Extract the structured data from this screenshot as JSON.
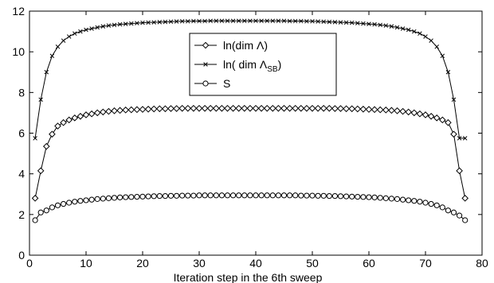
{
  "chart_data": {
    "type": "line",
    "xlabel": "Iteration step in the 6th sweep",
    "ylabel": "",
    "xlim": [
      0,
      80
    ],
    "ylim": [
      0,
      12
    ],
    "xticks": [
      0,
      10,
      20,
      30,
      40,
      50,
      60,
      70,
      80
    ],
    "yticks": [
      0,
      2,
      4,
      6,
      8,
      10,
      12
    ],
    "xtick_labels": [
      "0",
      "10",
      "20",
      "30",
      "40",
      "50",
      "60",
      "70",
      "80"
    ],
    "ytick_labels": [
      "0",
      "2",
      "4",
      "6",
      "8",
      "10",
      "12"
    ],
    "grid": false,
    "legend_position": "top-center",
    "x": [
      1,
      2,
      3,
      4,
      5,
      6,
      7,
      8,
      9,
      10,
      11,
      12,
      13,
      14,
      15,
      16,
      17,
      18,
      19,
      20,
      21,
      22,
      23,
      24,
      25,
      26,
      27,
      28,
      29,
      30,
      31,
      32,
      33,
      34,
      35,
      36,
      37,
      38,
      39,
      40,
      41,
      42,
      43,
      44,
      45,
      46,
      47,
      48,
      49,
      50,
      51,
      52,
      53,
      54,
      55,
      56,
      57,
      58,
      59,
      60,
      61,
      62,
      63,
      64,
      65,
      66,
      67,
      68,
      69,
      70,
      71,
      72,
      73,
      74,
      75,
      76,
      77
    ],
    "series": [
      {
        "name": "ln(dim Λ)",
        "marker": "diamond",
        "legend_main": "ln(dim Λ)",
        "legend_sub": "",
        "legend_tail": "",
        "values": [
          2.8,
          4.15,
          5.35,
          5.95,
          6.35,
          6.52,
          6.65,
          6.75,
          6.83,
          6.9,
          6.95,
          7.0,
          7.04,
          7.07,
          7.1,
          7.12,
          7.14,
          7.15,
          7.16,
          7.17,
          7.18,
          7.19,
          7.2,
          7.2,
          7.21,
          7.21,
          7.22,
          7.22,
          7.22,
          7.22,
          7.22,
          7.22,
          7.22,
          7.22,
          7.22,
          7.22,
          7.22,
          7.22,
          7.22,
          7.22,
          7.22,
          7.22,
          7.22,
          7.22,
          7.22,
          7.22,
          7.22,
          7.22,
          7.22,
          7.22,
          7.22,
          7.22,
          7.22,
          7.21,
          7.21,
          7.2,
          7.2,
          7.19,
          7.18,
          7.17,
          7.16,
          7.15,
          7.14,
          7.12,
          7.1,
          7.07,
          7.04,
          7.0,
          6.95,
          6.9,
          6.83,
          6.75,
          6.65,
          6.52,
          5.95,
          4.15,
          2.8
        ]
      },
      {
        "name": "ln( dim Λ_SB)",
        "marker": "x",
        "legend_main": "ln( dim Λ",
        "legend_sub": "SB",
        "legend_tail": ")",
        "values": [
          5.75,
          7.65,
          9.0,
          9.8,
          10.25,
          10.55,
          10.75,
          10.9,
          11.0,
          11.08,
          11.14,
          11.2,
          11.25,
          11.29,
          11.32,
          11.35,
          11.37,
          11.39,
          11.41,
          11.43,
          11.44,
          11.45,
          11.46,
          11.47,
          11.48,
          11.49,
          11.5,
          11.5,
          11.51,
          11.51,
          11.51,
          11.52,
          11.52,
          11.52,
          11.52,
          11.52,
          11.52,
          11.52,
          11.52,
          11.52,
          11.52,
          11.52,
          11.52,
          11.52,
          11.52,
          11.51,
          11.51,
          11.51,
          11.5,
          11.5,
          11.49,
          11.48,
          11.47,
          11.46,
          11.45,
          11.44,
          11.43,
          11.41,
          11.39,
          11.37,
          11.35,
          11.32,
          11.29,
          11.25,
          11.2,
          11.14,
          11.08,
          11.0,
          10.9,
          10.75,
          10.55,
          10.25,
          9.8,
          9.0,
          7.65,
          5.75,
          5.75
        ]
      },
      {
        "name": "S",
        "marker": "circle",
        "legend_main": "S",
        "legend_sub": "",
        "legend_tail": "",
        "values": [
          1.72,
          2.1,
          2.2,
          2.35,
          2.45,
          2.52,
          2.58,
          2.63,
          2.67,
          2.7,
          2.73,
          2.76,
          2.78,
          2.8,
          2.82,
          2.84,
          2.85,
          2.86,
          2.87,
          2.88,
          2.89,
          2.9,
          2.91,
          2.91,
          2.92,
          2.92,
          2.93,
          2.93,
          2.93,
          2.94,
          2.94,
          2.94,
          2.94,
          2.94,
          2.94,
          2.94,
          2.94,
          2.94,
          2.94,
          2.94,
          2.94,
          2.94,
          2.94,
          2.94,
          2.94,
          2.94,
          2.94,
          2.93,
          2.93,
          2.93,
          2.92,
          2.92,
          2.91,
          2.91,
          2.9,
          2.89,
          2.88,
          2.87,
          2.86,
          2.85,
          2.84,
          2.82,
          2.8,
          2.78,
          2.76,
          2.73,
          2.7,
          2.67,
          2.63,
          2.58,
          2.52,
          2.45,
          2.35,
          2.2,
          2.1,
          1.95,
          1.72
        ]
      }
    ]
  }
}
